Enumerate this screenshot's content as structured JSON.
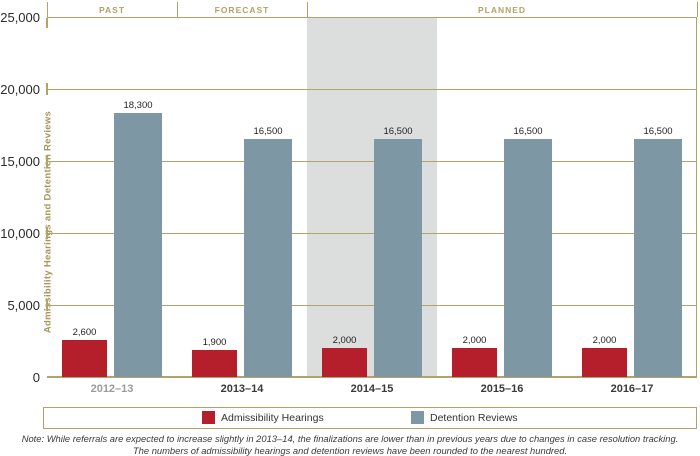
{
  "chart_data": {
    "type": "bar",
    "title": "",
    "ylabel": "Admissibility Hearings and Detention Reviews",
    "xlabel": "",
    "categories": [
      "2012–13",
      "2013–14",
      "2014–15",
      "2015–16",
      "2016–17"
    ],
    "muted_category_index": 0,
    "series": [
      {
        "name": "Admissibility Hearings",
        "color": "#b51f2b",
        "values": [
          2600,
          1900,
          2000,
          2000,
          2000
        ],
        "labels": [
          "2,600",
          "1,900",
          "2,000",
          "2,000",
          "2,000"
        ]
      },
      {
        "name": "Detention Reviews",
        "color": "#7e97a4",
        "values": [
          18300,
          16500,
          16500,
          16500,
          16500
        ],
        "labels": [
          "18,300",
          "16,500",
          "16,500",
          "16,500",
          "16,500"
        ]
      }
    ],
    "ylim": [
      0,
      25000
    ],
    "yticks": [
      {
        "value": 0,
        "label": "0"
      },
      {
        "value": 5000,
        "label": "5,000"
      },
      {
        "value": 10000,
        "label": "10,000"
      },
      {
        "value": 15000,
        "label": "15,000"
      },
      {
        "value": 20000,
        "label": "20,000"
      },
      {
        "value": 25000,
        "label": "25,000"
      }
    ],
    "grid": true,
    "legend_position": "bottom",
    "sections": [
      {
        "label": "PAST",
        "from": 0,
        "to": 1
      },
      {
        "label": "FORECAST",
        "from": 1,
        "to": 2
      },
      {
        "label": "PLANNED",
        "from": 2,
        "to": 5
      }
    ],
    "highlight_category_index": 2
  },
  "note": {
    "line1": "Note: While referrals are expected to increase slightly in 2013–14, the finalizations are lower than in previous years due to changes in case resolution tracking.",
    "line2": "The numbers of admissibility hearings and detention reviews have been rounded to the nearest hundred."
  },
  "colors": {
    "accent_tan": "#b3a269",
    "admissibility_red": "#b51f2b",
    "detention_blue": "#7e97a4",
    "highlight_gray": "#dcdddd",
    "muted_label_gray": "#9b9b9b"
  }
}
